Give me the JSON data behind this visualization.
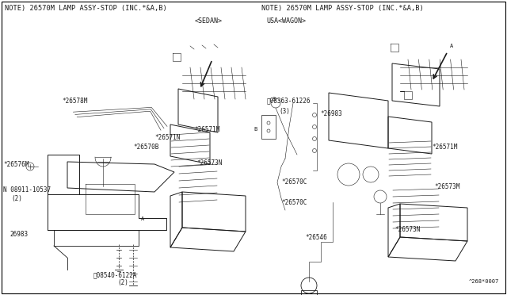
{
  "background_color": "#f0f0f0",
  "border_color": "#000000",
  "figsize": [
    6.4,
    3.72
  ],
  "dpi": 100,
  "left_note": "NOTE) 26570M LAMP ASSY-STOP (INC.*&A,B)",
  "right_note": "NOTE) 26570M LAMP ASSY-STOP (INC.*&A,B)",
  "left_label": "<SEDAN>",
  "right_label": "USA<WAGON>",
  "diagram_code": "^268*0007",
  "text_color": "#1a1a1a",
  "line_color": "#1a1a1a",
  "font_size_note": 6.2,
  "font_size_label": 6.0,
  "font_size_part": 5.5,
  "font_size_code": 5.0
}
